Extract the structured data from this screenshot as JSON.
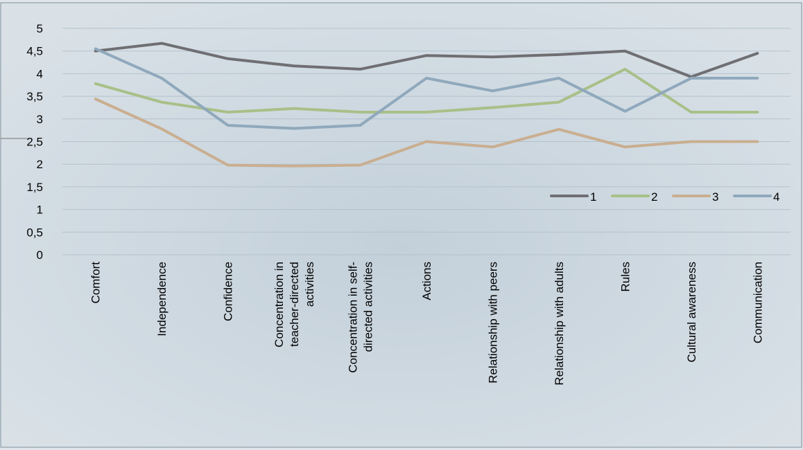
{
  "chart_data": {
    "type": "line",
    "categories": [
      [
        "Comfort"
      ],
      [
        "Independence"
      ],
      [
        "Confidence"
      ],
      [
        "Concentration in",
        "teacher-directed",
        "activities"
      ],
      [
        "Concentration in self-",
        "directed activities"
      ],
      [
        "Actions"
      ],
      [
        "Relationship with peers"
      ],
      [
        "Relationship with adults"
      ],
      [
        "Rules"
      ],
      [
        "Cultural awareness"
      ],
      [
        "Communication"
      ]
    ],
    "series": [
      {
        "name": "1",
        "color": "#6f6f73",
        "values": [
          4.5,
          4.67,
          4.33,
          4.17,
          4.1,
          4.4,
          4.37,
          4.42,
          4.5,
          3.93,
          4.45
        ]
      },
      {
        "name": "2",
        "color": "#a8c088",
        "values": [
          3.78,
          3.37,
          3.15,
          3.23,
          3.15,
          3.15,
          3.25,
          3.37,
          4.1,
          3.15,
          3.15
        ]
      },
      {
        "name": "3",
        "color": "#c9ae90",
        "values": [
          3.44,
          2.78,
          1.98,
          1.96,
          1.98,
          2.5,
          2.38,
          2.77,
          2.38,
          2.5,
          2.5
        ]
      },
      {
        "name": "4",
        "color": "#8fa8bc",
        "values": [
          4.55,
          3.9,
          2.86,
          2.79,
          2.86,
          3.9,
          3.62,
          3.9,
          3.17,
          3.9,
          3.9
        ]
      }
    ],
    "y_ticks": [
      "0",
      "0,5",
      "1",
      "1,5",
      "2",
      "2,5",
      "3",
      "3,5",
      "4",
      "4,5",
      "5"
    ],
    "ylim": [
      0,
      5
    ],
    "grid": true,
    "legend": "right"
  }
}
